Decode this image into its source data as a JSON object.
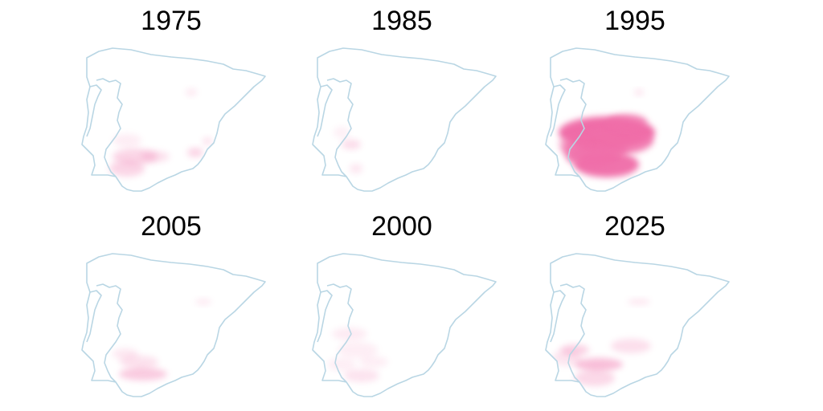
{
  "panels": [
    {
      "title": "1975",
      "intensity": 0.35
    },
    {
      "title": "1985",
      "intensity": 0.15
    },
    {
      "title": "1995",
      "intensity": 1.0
    },
    {
      "title": "2005",
      "intensity": 0.3
    },
    {
      "title": "2000",
      "intensity": 0.25
    },
    {
      "title": "2025",
      "intensity": 0.45
    }
  ],
  "colors": {
    "outline": "#b9d6e4",
    "heat": "#f06ea9",
    "background": "#ffffff"
  }
}
